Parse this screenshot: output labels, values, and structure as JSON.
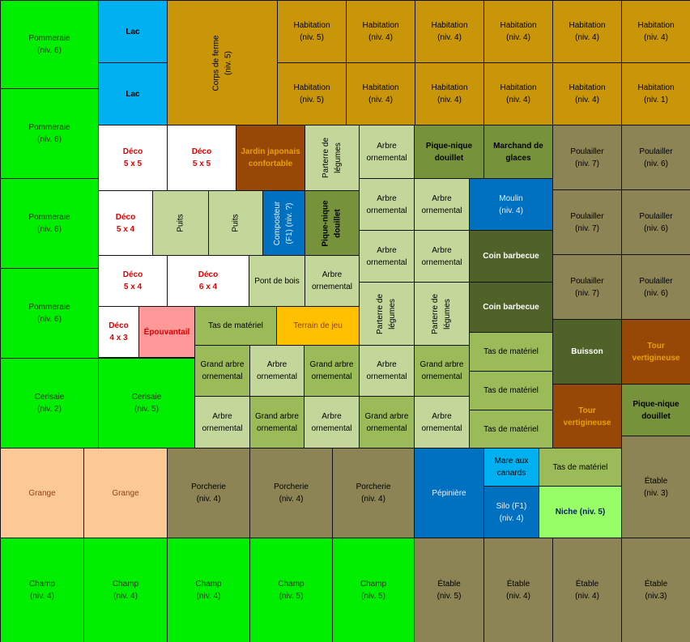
{
  "palette": {
    "green": "#00ee00",
    "blue": "#00b0f0",
    "gold": "#c9960a",
    "white": "#ffffff",
    "rust": "#984806",
    "sage": "#c4d79b",
    "olive": "#76933c",
    "dark_olive": "#4f6228",
    "mid_green": "#9bbb59",
    "khaki": "#8c8454",
    "pink": "#ff9999",
    "yellow": "#ffc000",
    "peach": "#fcc896",
    "deep_blue": "#0070c0",
    "sky": "#00b0f0",
    "lime": "#99ff66"
  },
  "text_colors": {
    "dark_green": "#1a3d00",
    "black": "#000000",
    "red": "#e00000",
    "white": "#ffffff",
    "orange": "#e8a000",
    "brown": "#8b4513",
    "navy": "#002060",
    "light": "#e6f2ff"
  },
  "cells": [
    {
      "label": "Pommeraie\n(niv. 6)",
      "fill": "green",
      "text": "dark_green"
    },
    {
      "label": "Pommeraie\n(niv. 6)",
      "fill": "green",
      "text": "dark_green"
    },
    {
      "label": "Pommeraie\n(niv. 6)",
      "fill": "green",
      "text": "dark_green"
    },
    {
      "label": "Pommeraie\n(niv. 6)",
      "fill": "green",
      "text": "dark_green"
    },
    {
      "label": "Cerisaie\n(niv. 2)",
      "fill": "green",
      "text": "dark_green"
    },
    {
      "label": "Cerisaie\n(niv. 5)",
      "fill": "green",
      "text": "dark_green"
    },
    {
      "label": "Lac",
      "fill": "blue",
      "text": "black",
      "bold": true
    },
    {
      "label": "Lac",
      "fill": "blue",
      "text": "black",
      "bold": true
    },
    {
      "label": "Corps de ferme\n(niv. 5)",
      "fill": "gold",
      "text": "black",
      "rot": true
    },
    {
      "label": "Habitation\n(niv. 5)",
      "fill": "gold",
      "text": "black"
    },
    {
      "label": "Habitation\n(niv. 4)",
      "fill": "gold",
      "text": "black"
    },
    {
      "label": "Habitation\n(niv. 4)",
      "fill": "gold",
      "text": "black"
    },
    {
      "label": "Habitation\n(niv. 4)",
      "fill": "gold",
      "text": "black"
    },
    {
      "label": "Habitation\n(niv. 4)",
      "fill": "gold",
      "text": "black"
    },
    {
      "label": "Habitation\n(niv. 4)",
      "fill": "gold",
      "text": "black"
    },
    {
      "label": "Habitation\n(niv. 5)",
      "fill": "gold",
      "text": "black"
    },
    {
      "label": "Habitation\n(niv. 4)",
      "fill": "gold",
      "text": "black"
    },
    {
      "label": "Habitation\n(niv. 4)",
      "fill": "gold",
      "text": "black"
    },
    {
      "label": "Habitation\n(niv. 4)",
      "fill": "gold",
      "text": "black"
    },
    {
      "label": "Habitation\n(niv. 4)",
      "fill": "gold",
      "text": "black"
    },
    {
      "label": "Habitation\n(niv. 1)",
      "fill": "gold",
      "text": "black"
    },
    {
      "label": "Déco\n5 x 5",
      "fill": "white",
      "text": "red",
      "bold": true
    },
    {
      "label": "Déco\n5 x 5",
      "fill": "white",
      "text": "red",
      "bold": true
    },
    {
      "label": "Jardin japonais\nconfortable",
      "fill": "rust",
      "text": "orange",
      "bold": true
    },
    {
      "label": "Parterre de\nlégumes",
      "fill": "sage",
      "text": "black",
      "rot": true
    },
    {
      "label": "Arbre\nornemental",
      "fill": "sage",
      "text": "black"
    },
    {
      "label": "Pique-nique\ndouillet",
      "fill": "olive",
      "text": "black",
      "bold": true
    },
    {
      "label": "Marchand de\nglaces",
      "fill": "olive",
      "text": "black",
      "bold": true
    },
    {
      "label": "Poulailler\n(niv. 7)",
      "fill": "khaki",
      "text": "black"
    },
    {
      "label": "Poulailler\n(niv. 6)",
      "fill": "khaki",
      "text": "black"
    },
    {
      "label": "Déco\n5 x 4",
      "fill": "white",
      "text": "red",
      "bold": true
    },
    {
      "label": "Puits",
      "fill": "sage",
      "text": "black",
      "rot": true
    },
    {
      "label": "Puits",
      "fill": "sage",
      "text": "black",
      "rot": true
    },
    {
      "label": "Composteur\n(F1)  (niv. ?)",
      "fill": "deep_blue",
      "text": "light",
      "rot": true
    },
    {
      "label": "Pique-nique\ndouillet",
      "fill": "olive",
      "text": "black",
      "bold": true,
      "rot": true
    },
    {
      "label": "Arbre\nornemental",
      "fill": "sage",
      "text": "black"
    },
    {
      "label": "Arbre\nornemental",
      "fill": "sage",
      "text": "black"
    },
    {
      "label": "Moulin\n(niv. 4)",
      "fill": "deep_blue",
      "text": "light"
    },
    {
      "label": "Poulailler\n(niv. 7)",
      "fill": "khaki",
      "text": "black"
    },
    {
      "label": "Poulailler\n(niv. 6)",
      "fill": "khaki",
      "text": "black"
    },
    {
      "label": "Déco\n5 x 4",
      "fill": "white",
      "text": "red",
      "bold": true
    },
    {
      "label": "Déco\n6 x 4",
      "fill": "white",
      "text": "red",
      "bold": true
    },
    {
      "label": "Pont de bois",
      "fill": "sage",
      "text": "black"
    },
    {
      "label": "Arbre\nornemental",
      "fill": "sage",
      "text": "black"
    },
    {
      "label": "Arbre\nornemental",
      "fill": "sage",
      "text": "black"
    },
    {
      "label": "Arbre\nornemental",
      "fill": "sage",
      "text": "black"
    },
    {
      "label": "Coin barbecue",
      "fill": "dark_olive",
      "text": "white",
      "bold": true
    },
    {
      "label": "Poulailler\n(niv. 7)",
      "fill": "khaki",
      "text": "black"
    },
    {
      "label": "Poulailler\n(niv. 6)",
      "fill": "khaki",
      "text": "black"
    },
    {
      "label": "Déco\n4 x 3",
      "fill": "white",
      "text": "red",
      "bold": true
    },
    {
      "label": "Épouvantail",
      "fill": "pink",
      "text": "red",
      "bold": true
    },
    {
      "label": "Tas de matériel",
      "fill": "mid_green",
      "text": "black"
    },
    {
      "label": "Terrain de jeu",
      "fill": "yellow",
      "text": "brown"
    },
    {
      "label": "Parterre de\nlégumes",
      "fill": "sage",
      "text": "black",
      "rot": true
    },
    {
      "label": "Parterre de\nlégumes",
      "fill": "sage",
      "text": "black",
      "rot": true
    },
    {
      "label": "Coin barbecue",
      "fill": "dark_olive",
      "text": "white",
      "bold": true
    },
    {
      "label": "Buisson",
      "fill": "dark_olive",
      "text": "white",
      "bold": true
    },
    {
      "label": "Tour\nvertigineuse",
      "fill": "rust",
      "text": "orange",
      "bold": true
    },
    {
      "label": "Grand arbre\nornemental",
      "fill": "mid_green",
      "text": "black"
    },
    {
      "label": "Arbre\nornemental",
      "fill": "sage",
      "text": "black"
    },
    {
      "label": "Grand arbre\nornemental",
      "fill": "mid_green",
      "text": "black"
    },
    {
      "label": "Arbre\nornemental",
      "fill": "sage",
      "text": "black"
    },
    {
      "label": "Grand arbre\nornemental",
      "fill": "mid_green",
      "text": "black"
    },
    {
      "label": "Tas de matériel",
      "fill": "mid_green",
      "text": "black"
    },
    {
      "label": "Arbre\nornemental",
      "fill": "sage",
      "text": "black"
    },
    {
      "label": "Grand arbre\nornemental",
      "fill": "mid_green",
      "text": "black"
    },
    {
      "label": "Arbre\nornemental",
      "fill": "sage",
      "text": "black"
    },
    {
      "label": "Grand arbre\nornemental",
      "fill": "mid_green",
      "text": "black"
    },
    {
      "label": "Arbre\nornemental",
      "fill": "sage",
      "text": "black"
    },
    {
      "label": "Tas de matériel",
      "fill": "mid_green",
      "text": "black"
    },
    {
      "label": "Tour\nvertigineuse",
      "fill": "rust",
      "text": "orange",
      "bold": true
    },
    {
      "label": "Pique-nique\ndouillet",
      "fill": "olive",
      "text": "black",
      "bold": true
    },
    {
      "label": "Tas de matériel",
      "fill": "mid_green",
      "text": "black"
    },
    {
      "label": "Grange",
      "fill": "peach",
      "text": "brown"
    },
    {
      "label": "Grange",
      "fill": "peach",
      "text": "brown"
    },
    {
      "label": "Porcherie\n(niv. 4)",
      "fill": "khaki",
      "text": "black"
    },
    {
      "label": "Porcherie\n(niv. 4)",
      "fill": "khaki",
      "text": "black"
    },
    {
      "label": "Porcherie\n(niv. 4)",
      "fill": "khaki",
      "text": "black"
    },
    {
      "label": "Pépinière",
      "fill": "deep_blue",
      "text": "light"
    },
    {
      "label": "Mare aux\ncanards",
      "fill": "sky",
      "text": "black"
    },
    {
      "label": "Tas de matériel",
      "fill": "mid_green",
      "text": "black"
    },
    {
      "label": "Étable\n(niv. 3)",
      "fill": "khaki",
      "text": "black"
    },
    {
      "label": "Silo  (F1)\n(niv. 4)",
      "fill": "deep_blue",
      "text": "light"
    },
    {
      "label": "Niche (niv. 5)",
      "fill": "lime",
      "text": "navy",
      "bold": true
    },
    {
      "label": "Champ\n(niv. 4)",
      "fill": "green",
      "text": "dark_green"
    },
    {
      "label": "Champ\n(niv. 4)",
      "fill": "green",
      "text": "dark_green"
    },
    {
      "label": "Champ\n(niv. 4)",
      "fill": "green",
      "text": "dark_green"
    },
    {
      "label": "Champ\n(niv. 5)",
      "fill": "green",
      "text": "dark_green"
    },
    {
      "label": "Champ\n(niv. 5)",
      "fill": "green",
      "text": "dark_green"
    },
    {
      "label": "Étable\n(niv. 5)",
      "fill": "khaki",
      "text": "black"
    },
    {
      "label": "Étable\n(niv. 4)",
      "fill": "khaki",
      "text": "black"
    },
    {
      "label": "Étable\n(niv. 4)",
      "fill": "khaki",
      "text": "black"
    },
    {
      "label": "Étable\n(niv.3)",
      "fill": "khaki",
      "text": "black"
    }
  ]
}
